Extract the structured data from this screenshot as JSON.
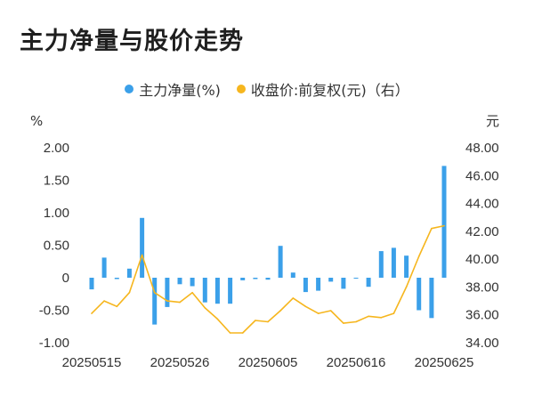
{
  "title": "主力净量与股价走势",
  "colors": {
    "bar": "#3ba0e9",
    "line": "#f6b61e"
  },
  "chart_data": {
    "type": "bar+line",
    "title": "主力净量与股价走势",
    "legend": [
      {
        "name": "主力净量(%)",
        "color": "#3ba0e9"
      },
      {
        "name": "收盘价:前复权(元)（右）",
        "color": "#f6b61e"
      }
    ],
    "left_unit": "%",
    "right_unit": "元",
    "left_ylim": [
      -1.0,
      2.0
    ],
    "right_ylim": [
      34.0,
      48.0
    ],
    "left_ticks": [
      "2.00",
      "1.50",
      "1.00",
      "0.50",
      "0",
      "-0.50",
      "-1.00"
    ],
    "right_ticks": [
      "48.00",
      "46.00",
      "44.00",
      "42.00",
      "40.00",
      "38.00",
      "36.00",
      "34.00"
    ],
    "x_tick_labels": [
      {
        "index": 0,
        "label": "20250515"
      },
      {
        "index": 7,
        "label": "20250526"
      },
      {
        "index": 14,
        "label": "20250605"
      },
      {
        "index": 21,
        "label": "20250616"
      },
      {
        "index": 28,
        "label": "20250625"
      }
    ],
    "dates": [
      "20250515",
      "20250516",
      "20250519",
      "20250520",
      "20250521",
      "20250522",
      "20250523",
      "20250526",
      "20250527",
      "20250528",
      "20250529",
      "20250530",
      "20250603",
      "20250604",
      "20250605",
      "20250606",
      "20250609",
      "20250610",
      "20250611",
      "20250612",
      "20250613",
      "20250616",
      "20250617",
      "20250618",
      "20250619",
      "20250620",
      "20250623",
      "20250624",
      "20250625"
    ],
    "series": [
      {
        "name": "主力净量(%)",
        "type": "bar",
        "axis": "left",
        "values": [
          -0.18,
          0.31,
          -0.02,
          0.14,
          0.92,
          -0.72,
          -0.45,
          -0.1,
          -0.13,
          -0.38,
          -0.4,
          -0.4,
          -0.04,
          -0.02,
          -0.03,
          0.49,
          0.08,
          -0.22,
          -0.2,
          -0.06,
          -0.17,
          -0.01,
          -0.14,
          0.41,
          0.46,
          0.34,
          -0.5,
          -0.62,
          1.72
        ]
      },
      {
        "name": "收盘价:前复权(元)（右）",
        "type": "line",
        "axis": "right",
        "values": [
          36.1,
          37.0,
          36.6,
          37.6,
          40.3,
          37.6,
          37.0,
          36.9,
          37.6,
          36.5,
          35.7,
          34.7,
          34.7,
          35.6,
          35.5,
          36.3,
          37.2,
          36.6,
          36.1,
          36.3,
          35.4,
          35.5,
          35.9,
          35.8,
          36.1,
          38.0,
          40.2,
          42.2,
          42.4
        ]
      }
    ]
  }
}
